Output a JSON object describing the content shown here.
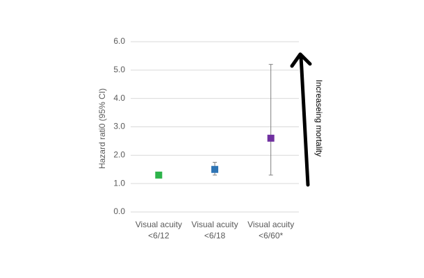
{
  "chart_data": {
    "type": "errorbar",
    "y_label": "Hazard rati0 (95% CI)",
    "annotation": "Increaseing mortality",
    "categories": [
      "Visual acuity <6/12",
      "Visual acuity <6/18",
      "Visual acuity <6/60*"
    ],
    "values": [
      1.3,
      1.5,
      2.6
    ],
    "ci_lower": [
      null,
      1.3,
      1.3
    ],
    "ci_upper": [
      null,
      1.75,
      5.2
    ],
    "colors": [
      "#2db34a",
      "#2f75b5",
      "#7030a0"
    ],
    "ylim": [
      0,
      6
    ],
    "yticks": [
      {
        "value": 0,
        "label": "0.0"
      },
      {
        "value": 1,
        "label": "1.0"
      },
      {
        "value": 2,
        "label": "2.0"
      },
      {
        "value": 3,
        "label": "3.0"
      },
      {
        "value": 4,
        "label": "4.0"
      },
      {
        "value": 5,
        "label": "5.0"
      },
      {
        "value": 6,
        "label": "6.0"
      }
    ],
    "grid": true
  }
}
